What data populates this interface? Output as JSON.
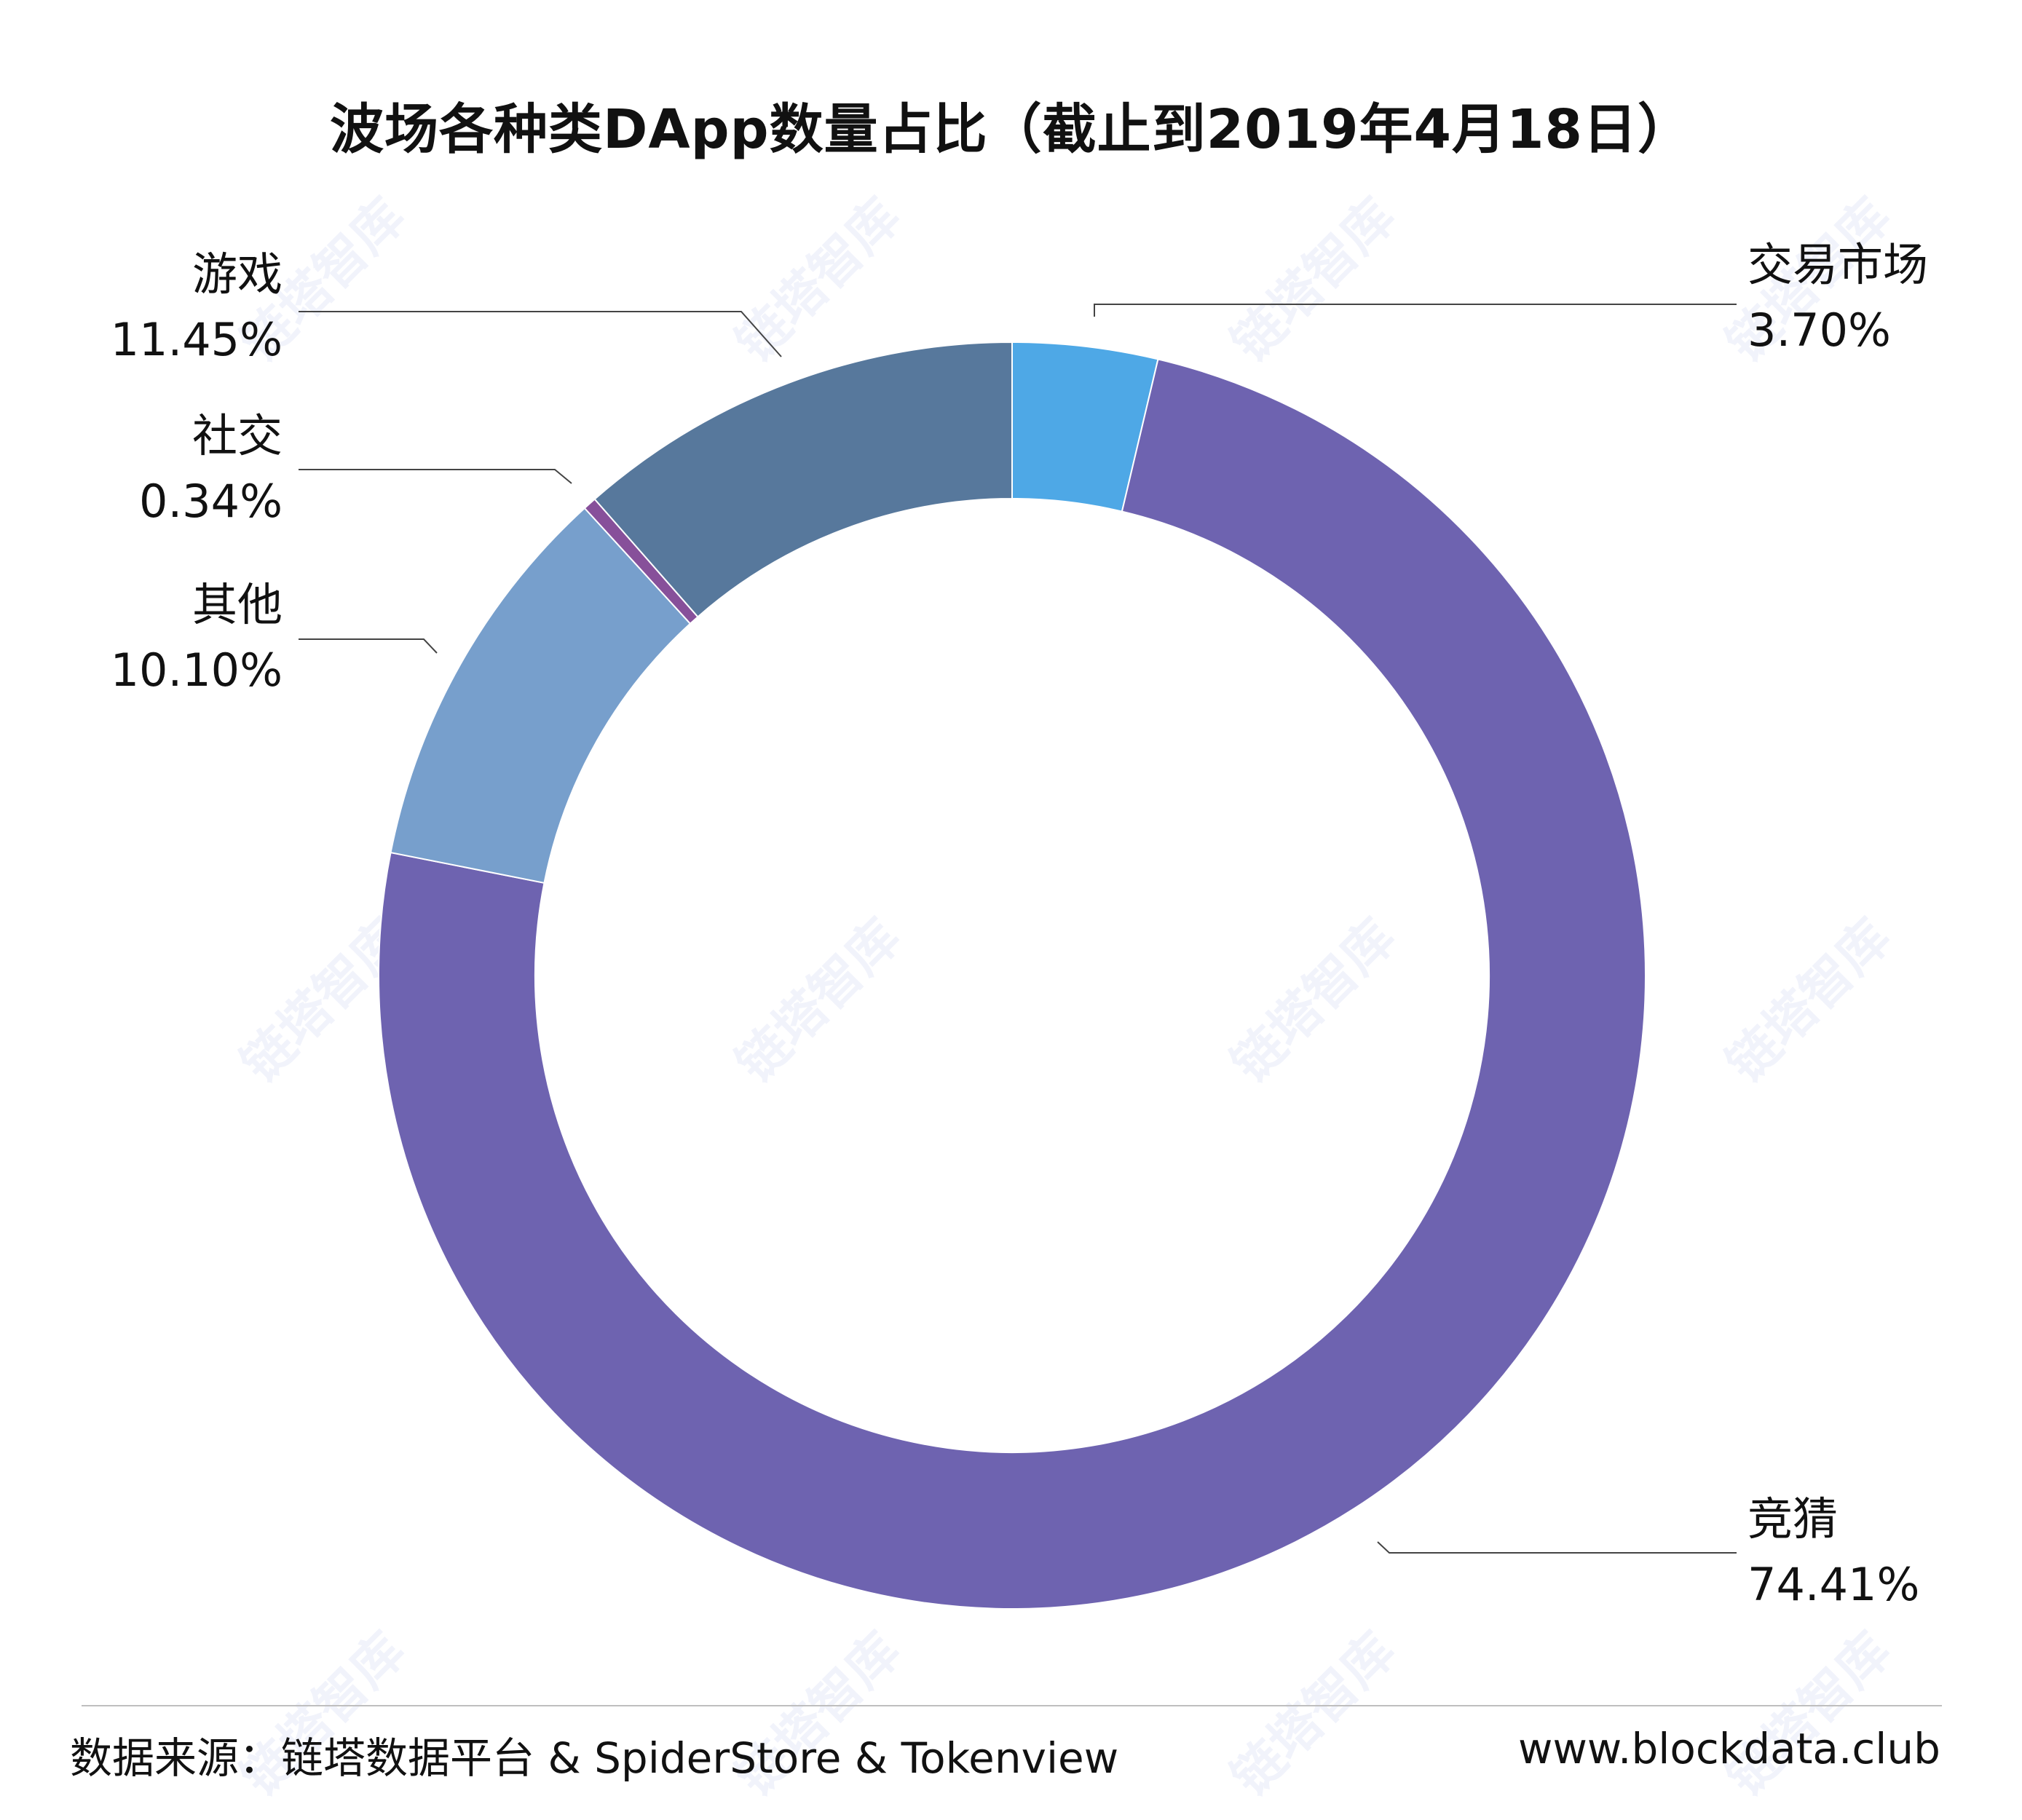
{
  "chart_data": {
    "type": "pie",
    "title": "波场各种类DApp数量占比（截止到2019年4月18日）",
    "slices": [
      {
        "label": "交易市场",
        "value": 3.7,
        "value_label": "3.70%",
        "color": "#4ea8e6"
      },
      {
        "label": "竞猜",
        "value": 74.41,
        "value_label": "74.41%",
        "color": "#6e63b0"
      },
      {
        "label": "其他",
        "value": 10.1,
        "value_label": "10.10%",
        "color": "#779fcc"
      },
      {
        "label": "社交",
        "value": 0.34,
        "value_label": "0.34%",
        "color": "#87509a"
      },
      {
        "label": "游戏",
        "value": 11.45,
        "value_label": "11.45%",
        "color": "#57789c"
      }
    ],
    "legend": "none (callout labels)",
    "start_angle_deg": 0,
    "direction": "clockwise"
  },
  "footer": {
    "source": "数据来源：链塔数据平台 & SpiderStore & Tokenview",
    "website": "www.blockdata.club"
  },
  "watermark": {
    "text": "链塔智库",
    "icon": "blockdata-logo-icon"
  }
}
